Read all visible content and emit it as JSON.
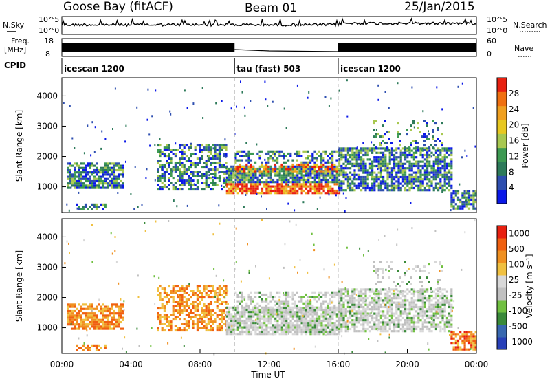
{
  "header": {
    "station": "Goose Bay (fitACF)",
    "beam": "Beam 01",
    "date": "25/Jan/2015"
  },
  "summary": {
    "noise_sky_label": "N.Sky",
    "noise_search_label": "N.Search",
    "freq_label": "Freq.",
    "freq_unit": "[MHz]",
    "nave_label": "Nave",
    "cpid_label": "CPID",
    "noise_left_ticks": [
      "10^5",
      "10^0"
    ],
    "noise_right_ticks": [
      "10^5",
      "10^0"
    ],
    "freq_ticks": [
      "18",
      "8"
    ],
    "nave_ticks": [
      "60",
      "0"
    ]
  },
  "cpid_segments": [
    {
      "start_hour": 0,
      "end_hour": 10,
      "label": "icescan 1200"
    },
    {
      "start_hour": 10,
      "end_hour": 16,
      "label": "tau (fast) 503"
    },
    {
      "start_hour": 16,
      "end_hour": 24,
      "label": "icescan 1200"
    }
  ],
  "chart_data": [
    {
      "type": "heatmap",
      "name": "power",
      "ylabel": "Slant Range [km]",
      "yticks": [
        1000,
        2000,
        3000,
        4000
      ],
      "ylim": [
        150,
        4600
      ],
      "xlim": [
        0,
        24
      ],
      "colorbar": {
        "label": "Power [dB]",
        "ticks": [
          "4",
          "8",
          "12",
          "16",
          "20",
          "24",
          "28"
        ],
        "colors": [
          "#0a18e8",
          "#2e4fb0",
          "#2d7a5a",
          "#3d9a52",
          "#a8c850",
          "#e8c820",
          "#f0a020",
          "#f07010",
          "#e82010"
        ]
      }
    },
    {
      "type": "heatmap",
      "name": "velocity",
      "ylabel": "Slant Range [km]",
      "yticks": [
        1000,
        2000,
        3000,
        4000
      ],
      "ylim": [
        150,
        4600
      ],
      "xlim": [
        0,
        24
      ],
      "colorbar": {
        "label": "Velocity [m s⁻¹]",
        "ticks": [
          "1000",
          "500",
          "100",
          "25",
          "-25",
          "-100",
          "-500",
          "-1000"
        ],
        "colors": [
          "#2840b8",
          "#3868b0",
          "#3a8a3a",
          "#70c040",
          "#c0c0c0",
          "#d8d8d8",
          "#f0c040",
          "#f09020",
          "#f06010",
          "#e82010"
        ]
      }
    }
  ],
  "xaxis": {
    "ticks": [
      "00:00",
      "04:00",
      "08:00",
      "12:00",
      "16:00",
      "20:00",
      "00:00"
    ],
    "label": "Time UT"
  }
}
